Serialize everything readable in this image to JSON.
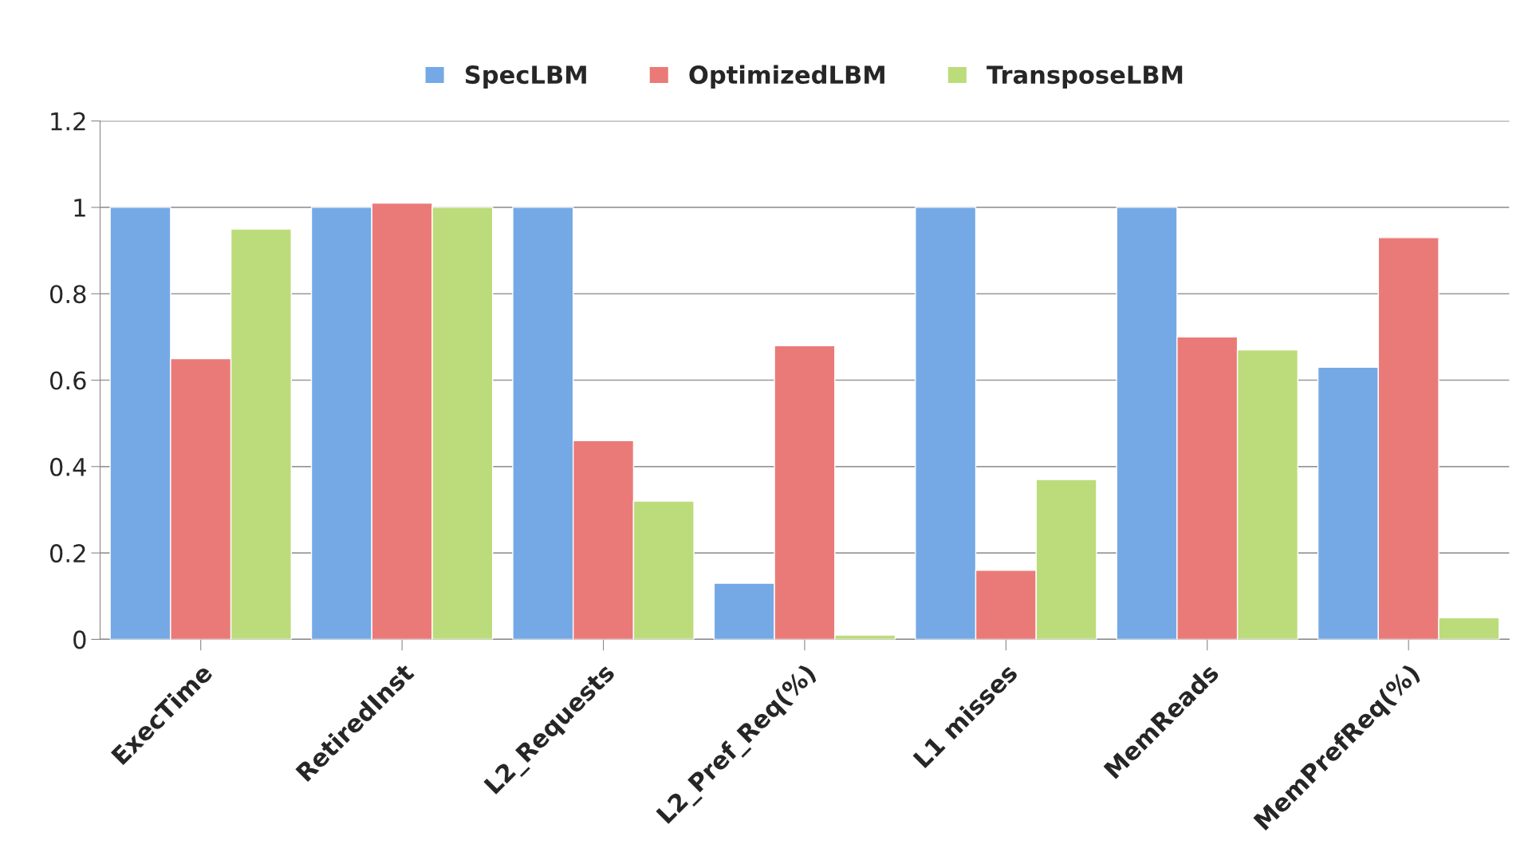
{
  "chart_data": {
    "type": "bar",
    "categories": [
      "ExecTime",
      "RetiredInst",
      "L2_Requests",
      "L2_Pref_Req(%)",
      "L1 misses",
      "MemReads",
      "MemPrefReq(%)"
    ],
    "series": [
      {
        "name": "SpecLBM",
        "color": "#74a9e6",
        "values": [
          1,
          1,
          1,
          0.13,
          1,
          1,
          0.63
        ]
      },
      {
        "name": "OptimizedLBM",
        "color": "#ea7a78",
        "values": [
          0.65,
          1.01,
          0.46,
          0.68,
          0.16,
          0.7,
          0.93
        ]
      },
      {
        "name": "TransposeLBM",
        "color": "#bcdc7c",
        "values": [
          0.95,
          1.0,
          0.32,
          0.01,
          0.37,
          0.67,
          0.05
        ]
      }
    ],
    "ylim": [
      0,
      1.2
    ],
    "yticks": [
      0,
      0.2,
      0.4,
      0.6,
      0.8,
      1,
      1.2
    ],
    "grid": "y",
    "legend": "top"
  }
}
